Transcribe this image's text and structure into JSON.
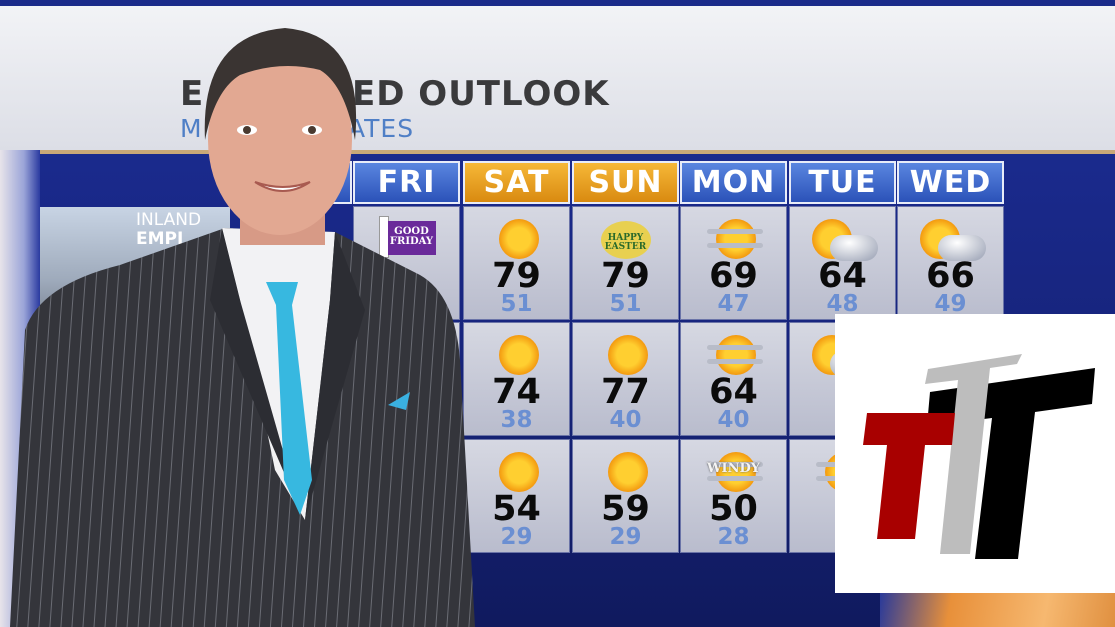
{
  "header": {
    "title_fragment_left": "E",
    "title_fragment_right": "ED OUTLOOK",
    "subtitle_fragment_left": "M",
    "subtitle_fragment_right": "ATES"
  },
  "region": {
    "line1": "INLAND",
    "line2": "EMPI"
  },
  "days": [
    {
      "label": "FRI",
      "color": "blue",
      "cells": [
        {
          "icon": "good-friday",
          "badge": "GOOD FRIDAY"
        }
      ]
    },
    {
      "label": "SAT",
      "color": "orange",
      "cells": [
        {
          "icon": "sunny",
          "high": "79",
          "low": "51"
        },
        {
          "icon": "sunny",
          "high": "74",
          "low": "38"
        },
        {
          "icon": "sunny",
          "high": "54",
          "low": "29"
        }
      ]
    },
    {
      "label": "SUN",
      "color": "orange",
      "cells": [
        {
          "icon": "easter",
          "badge": "HAPPY EASTER",
          "high": "79",
          "low": "51"
        },
        {
          "icon": "sunny",
          "high": "77",
          "low": "40"
        },
        {
          "icon": "sunny",
          "high": "59",
          "low": "29"
        }
      ]
    },
    {
      "label": "MON",
      "color": "blue",
      "cells": [
        {
          "icon": "hazy-sun",
          "high": "69",
          "low": "47"
        },
        {
          "icon": "hazy-sun",
          "high": "64",
          "low": "40"
        },
        {
          "icon": "windy",
          "badge": "WINDY",
          "high": "50",
          "low": "28"
        }
      ]
    },
    {
      "label": "TUE",
      "color": "blue",
      "cells": [
        {
          "icon": "partly-cloudy",
          "high": "64",
          "low": "48"
        },
        {
          "icon": "partly-cloudy"
        },
        {
          "icon": "windy"
        }
      ]
    },
    {
      "label": "WED",
      "color": "blue",
      "cells": [
        {
          "icon": "partly-cloudy",
          "high": "66",
          "low": "49"
        }
      ]
    }
  ],
  "colors": {
    "header_blue": "#2b52b8",
    "header_orange": "#d98a10",
    "low_temp": "#6b8fd2",
    "logo_red": "#a80000",
    "logo_gray": "#bdbdbd",
    "logo_black": "#000000"
  }
}
